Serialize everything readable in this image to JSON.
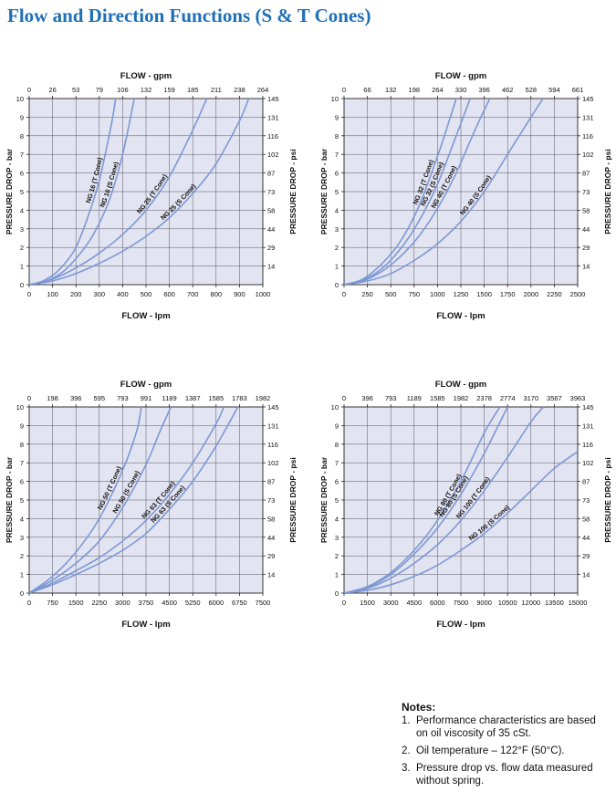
{
  "title": "Flow and Direction Functions (S & T Cones)",
  "notes": {
    "heading": "Notes:",
    "items": [
      "Performance characteristics are based on oil viscosity of 35 cSt.",
      "Oil temperature – 122°F (50°C).",
      "Pressure drop vs. flow data measured without spring."
    ]
  },
  "colors": {
    "plot_background": "#e3e4f1",
    "grid": "#555566",
    "curve": "#7c98d4",
    "title": "#1f6fb7"
  },
  "chart_data": [
    {
      "type": "line",
      "top_axis_label": "FLOW - gpm",
      "top_ticks": [
        "0",
        "26",
        "53",
        "79",
        "106",
        "132",
        "159",
        "185",
        "211",
        "238",
        "264"
      ],
      "xlabel": "FLOW - lpm",
      "x_ticks": [
        "0",
        "100",
        "200",
        "300",
        "400",
        "500",
        "600",
        "700",
        "800",
        "900",
        "1000"
      ],
      "xlim": [
        0,
        1000
      ],
      "ylabel": "PRESSURE DROP - bar",
      "y_ticks": [
        "0",
        "1",
        "2",
        "3",
        "4",
        "5",
        "6",
        "7",
        "8",
        "9",
        "10"
      ],
      "ylim": [
        0,
        10
      ],
      "right_axis_label": "PRESSURE DROP - psi",
      "right_ticks": [
        "14",
        "29",
        "44",
        "58",
        "73",
        "87",
        "102",
        "116",
        "131",
        "145"
      ],
      "grid": true,
      "series": [
        {
          "name": "NG 16 (T Cone)",
          "x": [
            0,
            50,
            100,
            150,
            200,
            250,
            300,
            350,
            370
          ],
          "y": [
            0,
            0.15,
            0.5,
            1.1,
            2.0,
            3.6,
            5.6,
            8.5,
            10
          ]
        },
        {
          "name": "NG 16 (S Cone)",
          "x": [
            0,
            50,
            100,
            150,
            200,
            250,
            300,
            350,
            400,
            450
          ],
          "y": [
            0,
            0.1,
            0.35,
            0.75,
            1.4,
            2.2,
            3.3,
            4.8,
            7.0,
            10
          ]
        },
        {
          "name": "NG 25 (T Cone)",
          "x": [
            0,
            100,
            200,
            300,
            400,
            500,
            600,
            700,
            760
          ],
          "y": [
            0,
            0.3,
            0.9,
            1.7,
            2.7,
            4.0,
            5.8,
            8.3,
            10
          ]
        },
        {
          "name": "NG 25 (S Cone)",
          "x": [
            0,
            100,
            200,
            300,
            400,
            500,
            600,
            700,
            800,
            900,
            940
          ],
          "y": [
            0,
            0.2,
            0.6,
            1.15,
            1.8,
            2.6,
            3.6,
            4.9,
            6.5,
            8.8,
            10
          ]
        }
      ]
    },
    {
      "type": "line",
      "top_axis_label": "FLOW - gpm",
      "top_ticks": [
        "0",
        "66",
        "132",
        "198",
        "264",
        "330",
        "396",
        "462",
        "528",
        "594",
        "661"
      ],
      "xlabel": "FLOW - lpm",
      "x_ticks": [
        "0",
        "250",
        "500",
        "750",
        "1000",
        "1250",
        "1500",
        "1750",
        "2000",
        "2250",
        "2500"
      ],
      "xlim": [
        0,
        2500
      ],
      "ylabel": "PRESSURE DROP - bar",
      "y_ticks": [
        "0",
        "1",
        "2",
        "3",
        "4",
        "5",
        "6",
        "7",
        "8",
        "9",
        "10"
      ],
      "ylim": [
        0,
        10
      ],
      "right_axis_label": "PRESSURE DROP - psi",
      "right_ticks": [
        "14",
        "29",
        "44",
        "58",
        "73",
        "87",
        "102",
        "116",
        "131",
        "145"
      ],
      "grid": true,
      "series": [
        {
          "name": "NG 32 (T Cone)",
          "x": [
            0,
            200,
            400,
            600,
            800,
            1000,
            1100,
            1200
          ],
          "y": [
            0,
            0.3,
            1.1,
            2.3,
            4.2,
            6.9,
            8.4,
            10
          ]
        },
        {
          "name": "NG 32 (S Cone)",
          "x": [
            0,
            200,
            400,
            600,
            800,
            1000,
            1200,
            1350
          ],
          "y": [
            0,
            0.25,
            0.85,
            1.9,
            3.4,
            5.4,
            8.0,
            10
          ]
        },
        {
          "name": "NG 40 (T Cone)",
          "x": [
            0,
            200,
            400,
            600,
            800,
            1000,
            1200,
            1400,
            1560
          ],
          "y": [
            0,
            0.2,
            0.7,
            1.5,
            2.6,
            4.1,
            6.0,
            8.3,
            10
          ]
        },
        {
          "name": "NG 40 (S Cone)",
          "x": [
            0,
            250,
            500,
            750,
            1000,
            1250,
            1500,
            1750,
            2000,
            2130
          ],
          "y": [
            0,
            0.2,
            0.6,
            1.3,
            2.2,
            3.4,
            5.0,
            7.0,
            9.0,
            10
          ]
        }
      ]
    },
    {
      "type": "line",
      "top_axis_label": "FLOW - gpm",
      "top_ticks": [
        "0",
        "198",
        "396",
        "595",
        "793",
        "991",
        "1189",
        "1387",
        "1585",
        "1783",
        "1982"
      ],
      "xlabel": "FLOW - lpm",
      "x_ticks": [
        "0",
        "750",
        "1500",
        "2250",
        "3000",
        "3750",
        "4500",
        "5250",
        "6000",
        "6750",
        "7500"
      ],
      "xlim": [
        0,
        7500
      ],
      "ylabel": "PRESSURE DROP - bar",
      "y_ticks": [
        "0",
        "1",
        "2",
        "3",
        "4",
        "5",
        "6",
        "7",
        "8",
        "9",
        "10"
      ],
      "ylim": [
        0,
        10
      ],
      "right_axis_label": "PRESSURE DROP - psi",
      "right_ticks": [
        "14",
        "29",
        "44",
        "58",
        "73",
        "87",
        "102",
        "116",
        "131",
        "145"
      ],
      "grid": true,
      "series": [
        {
          "name": "NG 50 (T Cone)",
          "x": [
            0,
            750,
            1500,
            2250,
            3000,
            3450,
            3600
          ],
          "y": [
            0,
            0.9,
            2.2,
            4.0,
            6.6,
            8.7,
            10
          ]
        },
        {
          "name": "NG 50 (S Cone)",
          "x": [
            0,
            750,
            1500,
            2250,
            3000,
            3750,
            4200,
            4550
          ],
          "y": [
            0,
            0.7,
            1.6,
            2.8,
            4.6,
            6.9,
            8.7,
            10
          ]
        },
        {
          "name": "NG 63 (T Cone)",
          "x": [
            0,
            750,
            1500,
            2250,
            3000,
            3750,
            4500,
            5250,
            6000,
            6250
          ],
          "y": [
            0,
            0.55,
            1.2,
            1.9,
            2.8,
            3.9,
            5.3,
            7.0,
            9.1,
            10
          ]
        },
        {
          "name": "NG 63 (S Cone)",
          "x": [
            0,
            750,
            1500,
            2250,
            3000,
            3750,
            4500,
            5250,
            6000,
            6700
          ],
          "y": [
            0,
            0.45,
            1.0,
            1.6,
            2.3,
            3.2,
            4.5,
            6.0,
            7.9,
            10
          ]
        }
      ]
    },
    {
      "type": "line",
      "top_axis_label": "FLOW - gpm",
      "top_ticks": [
        "0",
        "396",
        "793",
        "1189",
        "1585",
        "1982",
        "2378",
        "2774",
        "3170",
        "3567",
        "3963"
      ],
      "xlabel": "FLOW - lpm",
      "x_ticks": [
        "0",
        "1500",
        "3000",
        "4500",
        "6000",
        "7500",
        "9000",
        "10500",
        "12000",
        "13500",
        "15000"
      ],
      "xlim": [
        0,
        15000
      ],
      "ylabel": "PRESSURE DROP - bar",
      "y_ticks": [
        "0",
        "1",
        "2",
        "3",
        "4",
        "5",
        "6",
        "7",
        "8",
        "9",
        "10"
      ],
      "ylim": [
        0,
        10
      ],
      "right_axis_label": "PRESSURE DROP - psi",
      "right_ticks": [
        "14",
        "29",
        "44",
        "58",
        "73",
        "87",
        "102",
        "116",
        "131",
        "145"
      ],
      "grid": true,
      "series": [
        {
          "name": "NG 80 (T Cone)",
          "x": [
            0,
            1500,
            3000,
            4500,
            6000,
            7500,
            9000,
            10000
          ],
          "y": [
            0,
            0.35,
            1.1,
            2.3,
            3.9,
            6.0,
            8.6,
            10
          ]
        },
        {
          "name": "NG 80 (S Cone)",
          "x": [
            0,
            1500,
            3000,
            4500,
            6000,
            7500,
            9000,
            10500
          ],
          "y": [
            0,
            0.3,
            1.0,
            2.1,
            3.5,
            5.3,
            7.5,
            10
          ]
        },
        {
          "name": "NG 100 (T Cone)",
          "x": [
            0,
            1500,
            3000,
            4500,
            6000,
            7500,
            9000,
            10500,
            12000,
            12800
          ],
          "y": [
            0,
            0.25,
            0.8,
            1.6,
            2.6,
            3.9,
            5.5,
            7.3,
            9.2,
            10
          ]
        },
        {
          "name": "NG 100 (S Cone)",
          "x": [
            0,
            1500,
            3000,
            4500,
            6000,
            7500,
            9000,
            10500,
            12000,
            13500,
            15000
          ],
          "y": [
            0,
            0.15,
            0.45,
            0.9,
            1.5,
            2.3,
            3.2,
            4.3,
            5.5,
            6.7,
            7.6
          ]
        }
      ]
    }
  ]
}
